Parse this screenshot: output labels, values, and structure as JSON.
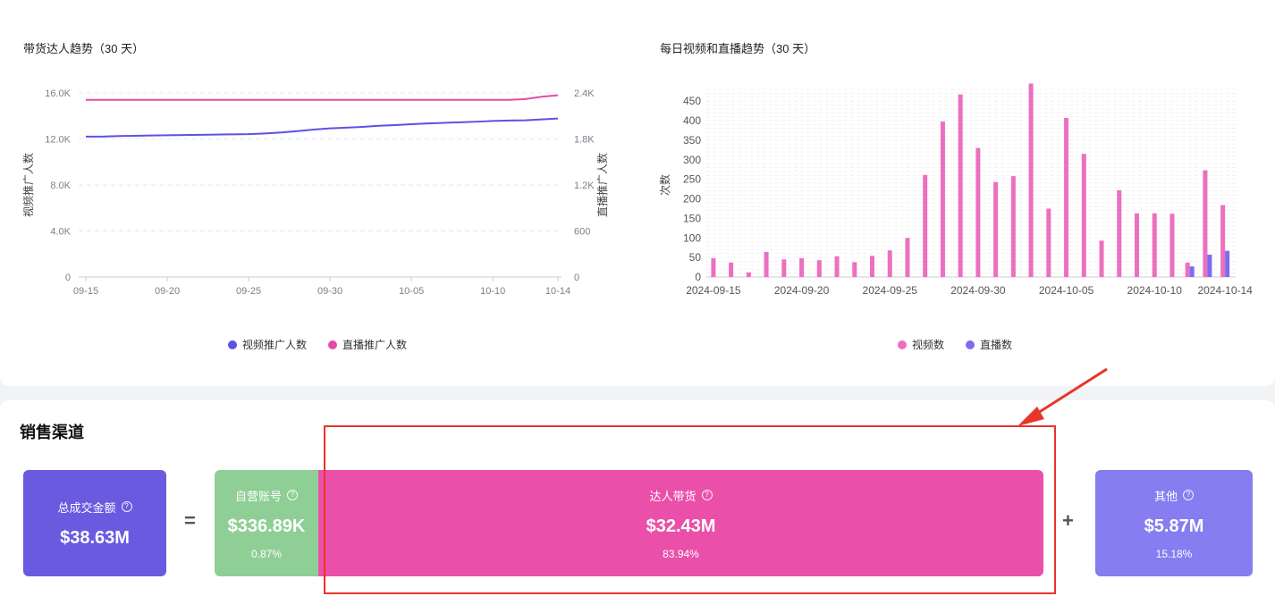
{
  "left_chart": {
    "title": "带货达人趋势（30 天）",
    "ylabel_left": "视频推广人数",
    "ylabel_right": "直播推广人数",
    "left_ticks": [
      "0",
      "4.0K",
      "8.0K",
      "12.0K",
      "16.0K"
    ],
    "right_ticks": [
      "0",
      "600",
      "1.2K",
      "1.8K",
      "2.4K"
    ],
    "x_ticks": [
      "09-15",
      "09-20",
      "09-25",
      "09-30",
      "10-05",
      "10-10",
      "10-14"
    ],
    "legend": [
      "视频推广人数",
      "直播推广人数"
    ]
  },
  "right_chart": {
    "title": "每日视频和直播趋势（30 天）",
    "ylabel": "次数",
    "y_ticks": [
      "0",
      "50",
      "100",
      "150",
      "200",
      "250",
      "300",
      "350",
      "400",
      "450"
    ],
    "x_ticks": [
      "2024-09-15",
      "2024-09-20",
      "2024-09-25",
      "2024-09-30",
      "2024-10-05",
      "2024-10-10",
      "2024-10-14"
    ],
    "legend": [
      "视频数",
      "直播数"
    ]
  },
  "sales": {
    "section_title": "销售渠道",
    "total": {
      "label": "总成交金额",
      "amount": "$38.63M"
    },
    "equals": "=",
    "plus": "+",
    "self": {
      "label": "自营账号",
      "amount": "$336.89K",
      "pct": "0.87%"
    },
    "creator": {
      "label": "达人带货",
      "amount": "$32.43M",
      "pct": "83.94%"
    },
    "other": {
      "label": "其他",
      "amount": "$5.87M",
      "pct": "15.18%"
    },
    "help_glyph": "?"
  },
  "colors": {
    "video": "#5b52e0",
    "live": "#e64aa6",
    "bar_video": "#ec6fc0",
    "bar_live": "#7b6cf0",
    "total_card": "#6a5ae0",
    "self_card": "#8fcf95",
    "creator_card": "#ea4fa9",
    "other_card": "#857df0"
  },
  "chart_data": [
    {
      "type": "line",
      "title": "带货达人趋势（30 天）",
      "x": [
        "09-15",
        "09-16",
        "09-17",
        "09-18",
        "09-19",
        "09-20",
        "09-21",
        "09-22",
        "09-23",
        "09-24",
        "09-25",
        "09-26",
        "09-27",
        "09-28",
        "09-29",
        "09-30",
        "10-01",
        "10-02",
        "10-03",
        "10-04",
        "10-05",
        "10-06",
        "10-07",
        "10-08",
        "10-09",
        "10-10",
        "10-11",
        "10-12",
        "10-13",
        "10-14"
      ],
      "series": [
        {
          "name": "视频推广人数",
          "axis": "left",
          "values": [
            12200,
            12200,
            12250,
            12270,
            12300,
            12320,
            12340,
            12360,
            12380,
            12400,
            12420,
            12480,
            12560,
            12680,
            12820,
            12920,
            12980,
            13050,
            13150,
            13200,
            13280,
            13350,
            13400,
            13450,
            13500,
            13560,
            13600,
            13620,
            13700,
            13780
          ]
        },
        {
          "name": "直播推广人数",
          "axis": "right",
          "values": [
            2310,
            2310,
            2310,
            2310,
            2310,
            2310,
            2310,
            2310,
            2310,
            2310,
            2310,
            2310,
            2310,
            2310,
            2310,
            2310,
            2310,
            2310,
            2310,
            2310,
            2310,
            2310,
            2310,
            2310,
            2310,
            2310,
            2310,
            2320,
            2350,
            2370
          ]
        }
      ],
      "ylabel": "视频推广人数",
      "ylabel_right": "直播推广人数",
      "ylim": [
        0,
        16000
      ],
      "ylim_right": [
        0,
        2400
      ],
      "grid": true,
      "legend": "bottom"
    },
    {
      "type": "bar",
      "title": "每日视频和直播趋势（30 天）",
      "categories": [
        "2024-09-15",
        "2024-09-16",
        "2024-09-17",
        "2024-09-18",
        "2024-09-19",
        "2024-09-20",
        "2024-09-21",
        "2024-09-22",
        "2024-09-23",
        "2024-09-24",
        "2024-09-25",
        "2024-09-26",
        "2024-09-27",
        "2024-09-28",
        "2024-09-29",
        "2024-09-30",
        "2024-10-01",
        "2024-10-02",
        "2024-10-03",
        "2024-10-04",
        "2024-10-05",
        "2024-10-06",
        "2024-10-07",
        "2024-10-08",
        "2024-10-09",
        "2024-10-10",
        "2024-10-11",
        "2024-10-12",
        "2024-10-13",
        "2024-10-14"
      ],
      "series": [
        {
          "name": "视频数",
          "values": [
            48,
            37,
            12,
            64,
            45,
            48,
            43,
            53,
            38,
            54,
            68,
            100,
            261,
            398,
            467,
            330,
            243,
            258,
            495,
            175,
            407,
            315,
            93,
            222,
            163,
            163,
            162,
            37,
            273,
            184
          ]
        },
        {
          "name": "直播数",
          "values": [
            0,
            0,
            0,
            0,
            0,
            0,
            0,
            0,
            0,
            0,
            0,
            0,
            0,
            0,
            0,
            0,
            0,
            0,
            0,
            0,
            0,
            0,
            0,
            0,
            0,
            0,
            0,
            27,
            57,
            67
          ]
        }
      ],
      "ylabel": "次数",
      "ylim": [
        0,
        480
      ],
      "grid": true,
      "legend": "bottom"
    }
  ]
}
